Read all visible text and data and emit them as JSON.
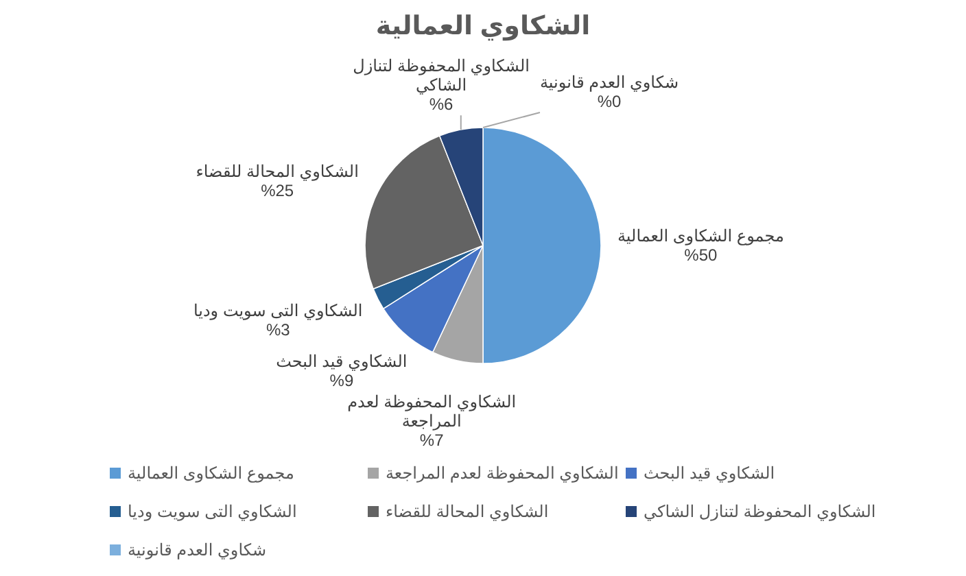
{
  "chart_data": {
    "type": "pie",
    "title": "الشكاوي العمالية",
    "categories": [
      "مجموع الشكاوى العمالية",
      "الشكاوي المحفوظة لعدم المراجعة",
      "الشكاوي قيد البحث",
      "الشكاوي التى سويت وديا",
      "الشكاوي المحالة للقضاء",
      "الشكاوي المحفوظة لتنازل الشاكي",
      "شكاوي العدم قانونية"
    ],
    "values": [
      50,
      7,
      9,
      3,
      25,
      6,
      0
    ],
    "colors": [
      "#5b9bd5",
      "#a5a5a5",
      "#4472c4",
      "#255e91",
      "#636363",
      "#264478",
      "#7cafdd"
    ],
    "value_labels": [
      "%50",
      "%7",
      "%9",
      "%3",
      "%25",
      "%6",
      "%0"
    ],
    "legend": "bottom"
  }
}
